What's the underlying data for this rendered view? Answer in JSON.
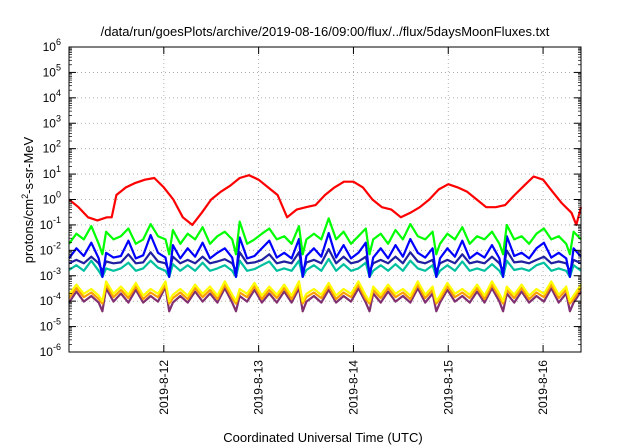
{
  "chart_data": {
    "type": "line",
    "title": "/data/run/goesPlots/archive/2019-08-16/09:00/flux/../flux/5daysMoonFluxes.txt",
    "xlabel": "Coordinated Universal Time (UTC)",
    "ylabel": {
      "base": "protons/cm",
      "sup": "2",
      "rest": "-s-sr-MeV"
    },
    "yscale": "log",
    "ylim": [
      1e-06,
      1000000.0
    ],
    "xlim": [
      11.0,
      16.4
    ],
    "grid": true,
    "legend": "none",
    "y_ticks": [
      {
        "value": 1e-06,
        "base": "10",
        "exp": "-6"
      },
      {
        "value": 1e-05,
        "base": "10",
        "exp": "-5"
      },
      {
        "value": 0.0001,
        "base": "10",
        "exp": "-4"
      },
      {
        "value": 0.001,
        "base": "10",
        "exp": "-3"
      },
      {
        "value": 0.01,
        "base": "10",
        "exp": "-2"
      },
      {
        "value": 0.1,
        "base": "10",
        "exp": "-1"
      },
      {
        "value": 1.0,
        "base": "10",
        "exp": "0"
      },
      {
        "value": 10.0,
        "base": "10",
        "exp": "1"
      },
      {
        "value": 100.0,
        "base": "10",
        "exp": "2"
      },
      {
        "value": 1000.0,
        "base": "10",
        "exp": "3"
      },
      {
        "value": 10000.0,
        "base": "10",
        "exp": "4"
      },
      {
        "value": 100000.0,
        "base": "10",
        "exp": "5"
      },
      {
        "value": 1000000.0,
        "base": "10",
        "exp": "6"
      }
    ],
    "x_ticks": [
      {
        "value": 12,
        "label": "2019-8-12"
      },
      {
        "value": 13,
        "label": "2019-8-13"
      },
      {
        "value": 14,
        "label": "2019-8-14"
      },
      {
        "value": 15,
        "label": "2019-8-15"
      },
      {
        "value": 16,
        "label": "2019-8-16"
      }
    ],
    "series": [
      {
        "color": "#ff0000",
        "x": [
          11.0,
          11.1,
          11.2,
          11.3,
          11.4,
          11.45,
          11.5,
          11.6,
          11.7,
          11.8,
          11.9,
          12.0,
          12.1,
          12.2,
          12.3,
          12.4,
          12.5,
          12.6,
          12.7,
          12.8,
          12.9,
          13.0,
          13.1,
          13.2,
          13.3,
          13.4,
          13.5,
          13.6,
          13.7,
          13.8,
          13.9,
          14.0,
          14.1,
          14.2,
          14.3,
          14.4,
          14.5,
          14.6,
          14.7,
          14.8,
          14.9,
          15.0,
          15.1,
          15.2,
          15.3,
          15.4,
          15.5,
          15.6,
          15.7,
          15.8,
          15.9,
          16.0,
          16.1,
          16.2,
          16.3,
          16.35,
          16.4
        ],
        "y": [
          1.0,
          0.5,
          0.2,
          0.15,
          0.2,
          0.2,
          1.5,
          3.0,
          4.5,
          6.0,
          7.0,
          3.0,
          1.0,
          0.2,
          0.1,
          0.3,
          1.0,
          2.0,
          3.5,
          7.0,
          9.0,
          6.0,
          3.0,
          1.5,
          0.2,
          0.4,
          0.5,
          0.6,
          1.5,
          3.0,
          5.0,
          5.0,
          3.0,
          1.0,
          0.5,
          0.4,
          0.2,
          0.3,
          0.5,
          1.0,
          2.5,
          4.0,
          3.0,
          2.0,
          1.0,
          0.5,
          0.5,
          0.6,
          1.5,
          3.5,
          8.0,
          6.0,
          2.0,
          0.7,
          0.3,
          0.1,
          0.5
        ]
      },
      {
        "color": "#00ff00",
        "base": 0.009,
        "mult": [
          2,
          5,
          3,
          10,
          2,
          6,
          3,
          4,
          8,
          2,
          3,
          12,
          4,
          3,
          7,
          2,
          5,
          3,
          9,
          2,
          4,
          6,
          3,
          15,
          2,
          3,
          5,
          8,
          3,
          4,
          2,
          10,
          3,
          5,
          3,
          20,
          3,
          6,
          2,
          4,
          8,
          3,
          5,
          2,
          7,
          3,
          12,
          4,
          3,
          6,
          2,
          5,
          3,
          9,
          2,
          4,
          3,
          6,
          2,
          11,
          3,
          4,
          2,
          5,
          8,
          3,
          4,
          2,
          6,
          3
        ],
        "dip_min": 0.007
      },
      {
        "color": "#0000ff",
        "base": 0.004,
        "mult": [
          1.2,
          3,
          1.5,
          5,
          1.2,
          2,
          1.3,
          1.5,
          6,
          1.2,
          1.6,
          10,
          2,
          1.3,
          4,
          1.2,
          3,
          1.4,
          5,
          1.2,
          2,
          3,
          1.3,
          8,
          1.2,
          1.5,
          3,
          6,
          1.3,
          2,
          1.2,
          7,
          1.5,
          3,
          1.4,
          12,
          1.3,
          4,
          1.2,
          2,
          5,
          1.3,
          3,
          1.2,
          4,
          1.4,
          7,
          2,
          1.3,
          3,
          1.2,
          3,
          1.4,
          6,
          1.2,
          2,
          1.3,
          4,
          1.2,
          9,
          1.5,
          2,
          1.2,
          3,
          5,
          1.3,
          2,
          1.2,
          3,
          1.4
        ],
        "dip_min": 0.0009
      },
      {
        "color": "#2020a0",
        "base": 0.0028,
        "mult": [
          1.1,
          1.5,
          1.1,
          2,
          1.1,
          1.3,
          1.1,
          1.2,
          2.5,
          1.1,
          1.2,
          3,
          1.3,
          1.1,
          2,
          1.1,
          1.5,
          1.1,
          2,
          1.1,
          1.3,
          1.6,
          1.1,
          3,
          1.1,
          1.2,
          1.5,
          2.5,
          1.1,
          1.3,
          1.1,
          3,
          1.2,
          1.5,
          1.1,
          4,
          1.1,
          2,
          1.1,
          1.3,
          2,
          1.1,
          1.5,
          1.1,
          2,
          1.1,
          3,
          1.3,
          1.1,
          1.5,
          1.1,
          1.5,
          1.1,
          2.5,
          1.1,
          1.3,
          1.1,
          2,
          1.1,
          3.5,
          1.2,
          1.3,
          1.1,
          1.5,
          2,
          1.1,
          1.3,
          1.1,
          1.5,
          1.1
        ],
        "dip_min": 0.0015
      },
      {
        "color": "#00c0a0",
        "base": 0.0013,
        "mult": [
          1.3,
          2,
          1.2,
          3,
          1.2,
          1.5,
          1.2,
          1.5,
          2.5,
          1.2,
          1.5,
          3,
          1.6,
          1.2,
          2.2,
          1.2,
          2,
          1.2,
          2.5,
          1.2,
          1.5,
          2,
          1.2,
          3,
          1.2,
          1.4,
          2,
          2.8,
          1.2,
          1.5,
          1.2,
          3,
          1.3,
          2,
          1.2,
          3.5,
          1.2,
          2.2,
          1.2,
          1.5,
          2.5,
          1.2,
          2,
          1.2,
          2.2,
          1.2,
          3,
          1.5,
          1.2,
          2,
          1.2,
          2,
          1.2,
          2.8,
          1.2,
          1.5,
          1.2,
          2.2,
          1.2,
          3,
          1.3,
          1.5,
          1.2,
          2,
          2.5,
          1.2,
          1.5,
          1.2,
          2,
          1.2
        ],
        "dip_min": 0.0009
      },
      {
        "color": "#ffff00",
        "base": 0.00015,
        "mult": [
          1.2,
          3,
          1.3,
          2,
          1.1,
          4,
          1.3,
          2.5,
          1.2,
          3.5,
          1.1,
          2,
          1.3,
          4,
          1.2,
          2,
          1.1,
          3,
          1.3,
          2.5,
          1.1,
          4,
          1.2,
          2,
          1.3,
          3.5,
          1.1,
          2.5,
          1.2,
          3,
          1.1,
          4,
          1.3,
          2,
          1.2,
          3.5,
          1.1,
          2,
          1.3,
          4,
          1.1,
          2.5,
          1.2,
          3,
          1.3,
          2,
          1.1,
          4,
          1.2,
          2.5,
          1.1,
          3.5,
          1.3,
          2,
          1.2,
          3,
          1.1,
          4,
          1.3,
          2.5,
          1.2,
          3,
          1.1,
          2,
          1.3,
          4,
          1.2,
          2.5,
          1.1,
          3
        ],
        "dip_min": 0.0001
      },
      {
        "color": "#ffa000",
        "base": 0.00011,
        "mult": [
          1.2,
          3,
          1.3,
          2,
          1.1,
          4,
          1.3,
          2.5,
          1.2,
          3.5,
          1.1,
          2,
          1.3,
          4,
          1.2,
          2,
          1.1,
          3,
          1.3,
          2.5,
          1.1,
          4,
          1.2,
          2,
          1.3,
          3.5,
          1.1,
          2.5,
          1.2,
          3,
          1.1,
          4,
          1.3,
          2,
          1.2,
          3.5,
          1.1,
          2,
          1.3,
          4,
          1.1,
          2.5,
          1.2,
          3,
          1.3,
          2,
          1.1,
          4,
          1.2,
          2.5,
          1.1,
          3.5,
          1.3,
          2,
          1.2,
          3,
          1.1,
          4,
          1.3,
          2.5,
          1.2,
          3,
          1.1,
          2,
          1.3,
          4,
          1.2,
          2.5,
          1.1,
          3
        ],
        "dip_min": 8e-05
      },
      {
        "color": "#803070",
        "base": 8e-05,
        "mult": [
          1.1,
          3,
          1.2,
          2,
          1.1,
          4,
          1.2,
          2.5,
          1.1,
          3.5,
          1.1,
          2,
          1.2,
          4.5,
          1.1,
          2,
          1.1,
          3,
          1.2,
          2.5,
          1.1,
          4,
          1.1,
          2,
          1.2,
          3.5,
          1.1,
          2.5,
          1.1,
          3,
          1.1,
          4,
          1.2,
          2,
          1.1,
          3.5,
          1.1,
          2,
          1.2,
          4,
          1.1,
          2.5,
          1.1,
          3,
          1.2,
          2,
          1.1,
          4,
          1.1,
          2.5,
          1.1,
          3.5,
          1.2,
          2,
          1.1,
          3,
          1.1,
          4,
          1.2,
          2.5,
          1.1,
          3,
          1.1,
          2,
          1.2,
          4,
          1.1,
          2.5,
          1.1,
          3
        ],
        "dip_min": 4e-05
      }
    ]
  }
}
